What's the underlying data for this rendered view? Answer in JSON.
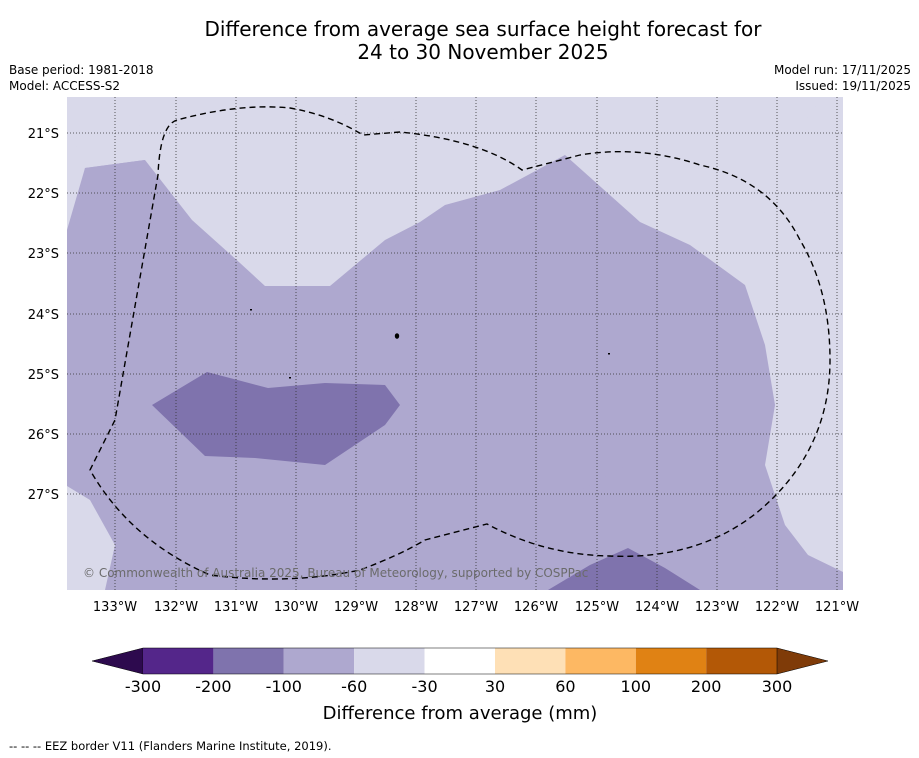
{
  "title": {
    "line1": "Difference from average sea surface height forecast for",
    "line2": "24 to 30 November 2025"
  },
  "meta_left": {
    "base_period": "Base period: 1981-2018",
    "model": "Model: ACCESS-S2"
  },
  "meta_right": {
    "model_run": "Model run: 17/11/2025",
    "issued": "Issued: 19/11/2025"
  },
  "map": {
    "lat_labels": [
      "21°S",
      "22°S",
      "23°S",
      "24°S",
      "25°S",
      "26°S",
      "27°S"
    ],
    "lon_labels": [
      "133°W",
      "132°W",
      "131°W",
      "130°W",
      "129°W",
      "128°W",
      "127°W",
      "126°W",
      "125°W",
      "124°W",
      "123°W",
      "122°W",
      "121°W"
    ],
    "copyright": "© Commonwealth of Australia 2025, Bureau of Meteorology, supported by COSPPac"
  },
  "colorbar": {
    "title": "Difference from average (mm)",
    "ticks": [
      "-300",
      "-200",
      "-100",
      "-60",
      "-30",
      "30",
      "60",
      "100",
      "200",
      "300"
    ],
    "colors": {
      "under": "#2d0a4e",
      "c1": "#54268a",
      "c2": "#7f73ad",
      "c3": "#aea8cf",
      "c4": "#d9d9ea",
      "c5": "#ffffff",
      "c6": "#fee0b6",
      "c7": "#fdb863",
      "c8": "#e08214",
      "c9": "#b35806",
      "over": "#7f3b08"
    }
  },
  "footnote": "--  --  -- EEZ border V11 (Flanders Marine Institute, 2019)."
}
